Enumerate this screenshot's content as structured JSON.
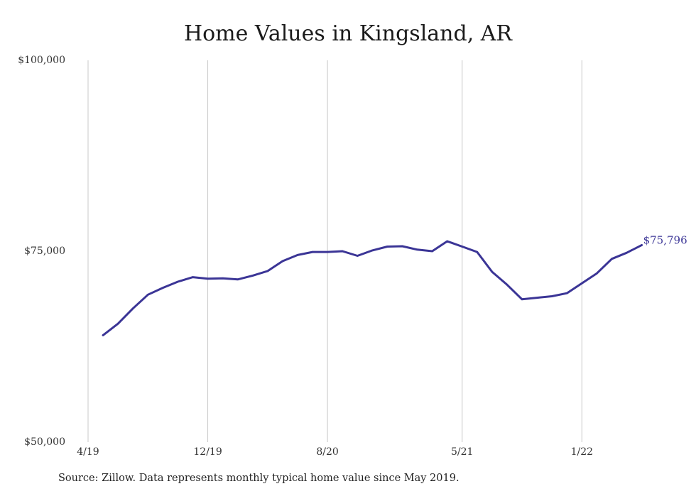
{
  "chart_data": {
    "type": "line",
    "title": "Home Values in Kingsland, AR",
    "xlabel": "",
    "ylabel": "",
    "y_ticks": [
      "$100,000",
      "$75,000",
      "$50,000"
    ],
    "y_tick_values": [
      100000,
      75000,
      50000
    ],
    "ylim": [
      50000,
      100000
    ],
    "x_tick_labels": [
      "4/19",
      "12/19",
      "8/20",
      "5/21",
      "1/22"
    ],
    "x_tick_dates": [
      "2019-04",
      "2019-12",
      "2020-08",
      "2021-05",
      "2022-01"
    ],
    "xlim": [
      "2019-04",
      "2022-06"
    ],
    "grid": "vertical",
    "line_color": "#3b3596",
    "series": [
      {
        "x": [
          "2019-05",
          "2019-06",
          "2019-07",
          "2019-08",
          "2019-09",
          "2019-10",
          "2019-11",
          "2019-12",
          "2020-01",
          "2020-02",
          "2020-03",
          "2020-04",
          "2020-05",
          "2020-06",
          "2020-07",
          "2020-08",
          "2020-09",
          "2020-10",
          "2020-11",
          "2020-12",
          "2021-01",
          "2021-02",
          "2021-03",
          "2021-04",
          "2021-05",
          "2021-06",
          "2021-07",
          "2021-08",
          "2021-09",
          "2021-10",
          "2021-11",
          "2021-12",
          "2022-01",
          "2022-02",
          "2022-03",
          "2022-04",
          "2022-05"
        ],
        "values": [
          64000,
          65500,
          67500,
          69300,
          70200,
          71000,
          71600,
          71400,
          71450,
          71300,
          71800,
          72400,
          73700,
          74500,
          74900,
          74900,
          75000,
          74400,
          75100,
          75600,
          75650,
          75200,
          75000,
          76300,
          75600,
          74900,
          72300,
          70600,
          68700,
          68900,
          69100,
          69500,
          70800,
          72100,
          74000,
          74800,
          75796
        ]
      }
    ],
    "end_label": "$75,796",
    "source": "Source: Zillow. Data represents monthly typical home value since May 2019."
  }
}
